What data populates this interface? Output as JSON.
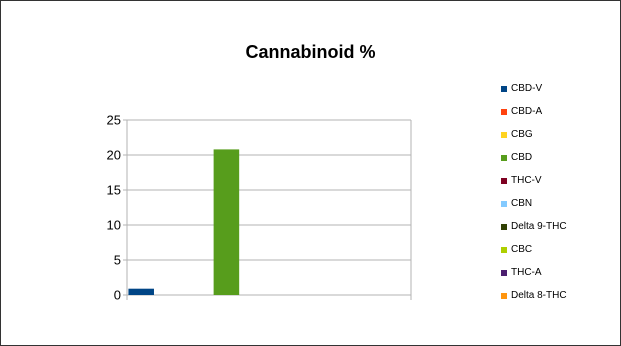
{
  "chart_data": {
    "type": "bar",
    "title": "Cannabinoid %",
    "xlabel": "",
    "ylabel": "",
    "ylim": [
      0,
      25
    ],
    "yticks": [
      0,
      5,
      10,
      15,
      20,
      25
    ],
    "grid": true,
    "legend_position": "right",
    "series": [
      {
        "name": "CBD-V",
        "color": "#004586",
        "value": 0.9
      },
      {
        "name": "CBD-A",
        "color": "#ff420e",
        "value": 0
      },
      {
        "name": "CBG",
        "color": "#ffd320",
        "value": 0
      },
      {
        "name": "CBD",
        "color": "#579d1c",
        "value": 20.8
      },
      {
        "name": "THC-V",
        "color": "#7e0021",
        "value": 0
      },
      {
        "name": "CBN",
        "color": "#83caff",
        "value": 0
      },
      {
        "name": "Delta 9-THC",
        "color": "#314004",
        "value": 0
      },
      {
        "name": "CBC",
        "color": "#aecf00",
        "value": 0
      },
      {
        "name": "THC-A",
        "color": "#4b1f6f",
        "value": 0
      },
      {
        "name": "Delta 8-THC",
        "color": "#ff950e",
        "value": 0
      }
    ]
  }
}
